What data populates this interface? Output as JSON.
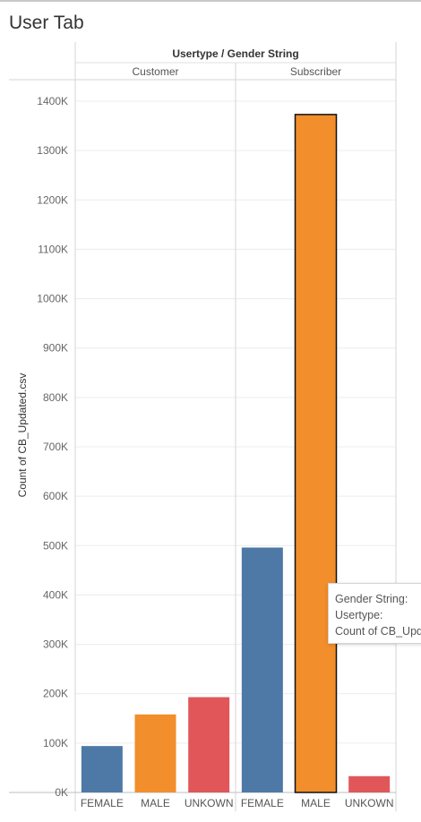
{
  "page": {
    "title": "User Tab"
  },
  "header": {
    "title": "Usertype / Gender String"
  },
  "panes": [
    "Customer",
    "Subscriber"
  ],
  "y_axis": {
    "label": "Count of CB_Updated.csv",
    "ticks": [
      "0K",
      "100K",
      "200K",
      "300K",
      "400K",
      "500K",
      "600K",
      "700K",
      "800K",
      "900K",
      "1000K",
      "1100K",
      "1200K",
      "1300K",
      "1400K"
    ]
  },
  "tooltip": {
    "line1": "Gender String:",
    "line2": "Usertype:",
    "line3": "Count of CB_Updated.csv"
  },
  "colors": {
    "FEMALE": "#4e79a7",
    "MALE": "#f28e2b",
    "UNKOWN": "#e15759"
  },
  "chart_data": {
    "type": "bar",
    "title": "User Tab",
    "xlabel": "Usertype / Gender String",
    "ylabel": "Count of CB_Updated.csv",
    "ylim": [
      0,
      1400000
    ],
    "grid": true,
    "groups": [
      "Customer",
      "Subscriber"
    ],
    "categories": [
      "FEMALE",
      "MALE",
      "UNKOWN"
    ],
    "series": [
      {
        "name": "Customer",
        "values": [
          94000,
          158000,
          193000
        ]
      },
      {
        "name": "Subscriber",
        "values": [
          496000,
          1373000,
          33000
        ]
      }
    ],
    "highlighted": {
      "group": "Subscriber",
      "category": "MALE"
    }
  }
}
